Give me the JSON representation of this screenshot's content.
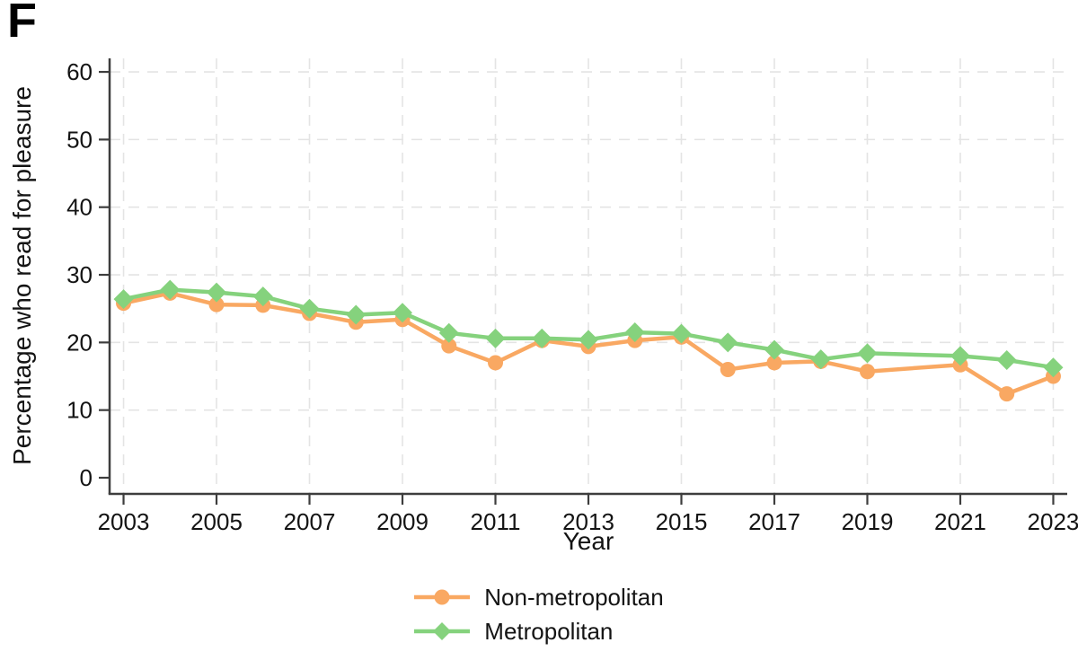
{
  "panel_label": "F",
  "axes": {
    "x_label": "Year",
    "y_label": "Percentage who read for pleasure"
  },
  "legend": [
    {
      "label": "Non-metropolitan",
      "marker": "circle",
      "color": "#F9A862"
    },
    {
      "label": "Metropolitan",
      "marker": "diamond",
      "color": "#85D27D"
    }
  ],
  "colors": {
    "non_metropolitan": "#F9A862",
    "metropolitan": "#85D27D",
    "gridline": "#E4E4E4",
    "axis": "#3D3D3D",
    "text": "#141414"
  },
  "chart_data": {
    "type": "line",
    "title": "",
    "xlabel": "Year",
    "ylabel": "Percentage who read for pleasure",
    "xlim": [
      2002.7,
      2023.3
    ],
    "ylim": [
      0,
      62
    ],
    "x_ticks": [
      2003,
      2005,
      2007,
      2009,
      2011,
      2013,
      2015,
      2017,
      2019,
      2021,
      2023
    ],
    "y_ticks": [
      0,
      10,
      20,
      30,
      40,
      50,
      60
    ],
    "grid": "dashed",
    "legend_position": "bottom",
    "note_missing_years": [
      2020
    ],
    "x": [
      2003,
      2004,
      2005,
      2006,
      2007,
      2008,
      2009,
      2010,
      2011,
      2012,
      2013,
      2014,
      2015,
      2016,
      2017,
      2018,
      2019,
      2021,
      2022,
      2023
    ],
    "series": [
      {
        "name": "Non-metropolitan",
        "color": "#F9A862",
        "marker": "circle",
        "values": [
          25.8,
          27.3,
          25.6,
          25.5,
          24.3,
          23.0,
          23.4,
          19.5,
          17.0,
          20.3,
          19.4,
          20.3,
          20.8,
          16.0,
          17.0,
          17.2,
          15.7,
          16.7,
          12.4,
          15.0
        ]
      },
      {
        "name": "Metropolitan",
        "color": "#85D27D",
        "marker": "diamond",
        "values": [
          26.4,
          27.8,
          27.4,
          26.8,
          25.0,
          24.1,
          24.4,
          21.4,
          20.6,
          20.6,
          20.4,
          21.5,
          21.3,
          20.0,
          18.9,
          17.5,
          18.4,
          18.0,
          17.4,
          16.3
        ]
      }
    ]
  }
}
